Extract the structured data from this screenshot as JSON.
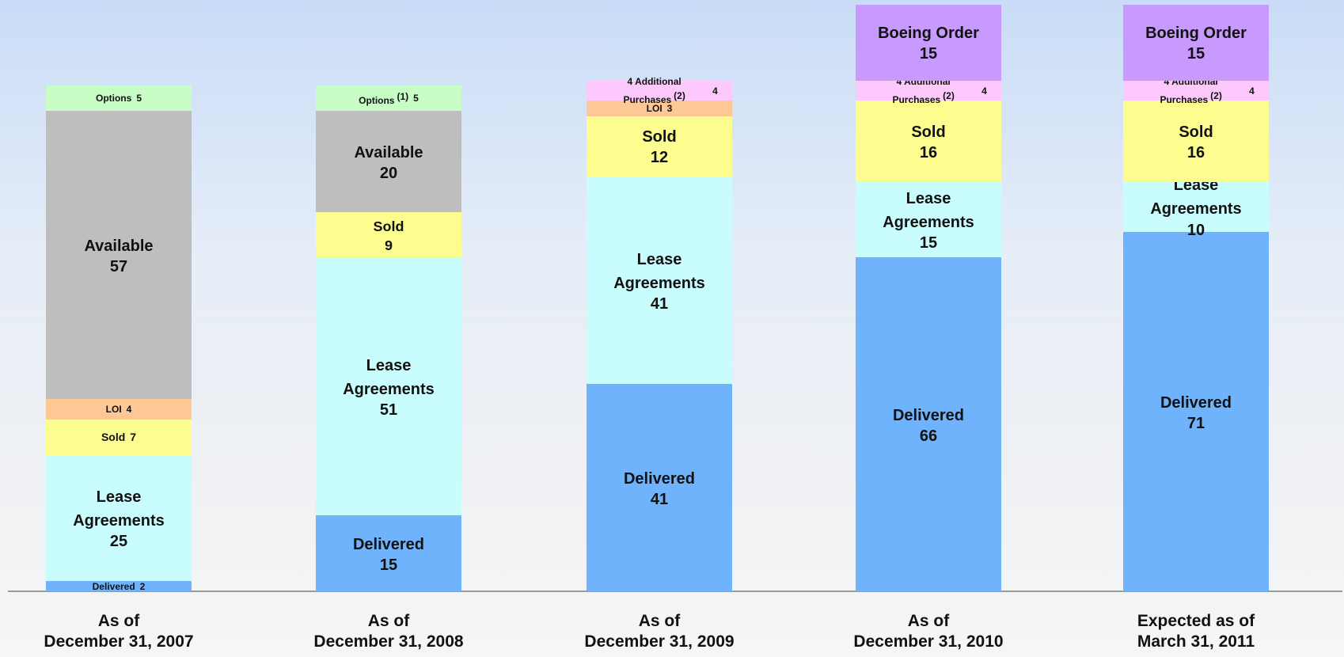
{
  "chart_data": {
    "type": "bar",
    "stacked": true,
    "categories": [
      "As of\nDecember 31, 2007",
      "As of\nDecember 31, 2008",
      "As of\nDecember 31, 2009",
      "As of\nDecember 31, 2010",
      "Expected as of\nMarch 31, 2011"
    ],
    "series": [
      {
        "name": "Delivered",
        "color": "#6fb3fd",
        "values": [
          2,
          15,
          41,
          66,
          71
        ]
      },
      {
        "name": "Lease Agreements",
        "color": "#c9fdfd",
        "values": [
          25,
          51,
          41,
          15,
          10
        ]
      },
      {
        "name": "Sold",
        "color": "#fdfd8f",
        "values": [
          7,
          9,
          12,
          16,
          16
        ]
      },
      {
        "name": "LOI",
        "color": "#fdc896",
        "values": [
          4,
          null,
          3,
          null,
          null
        ]
      },
      {
        "name": "Available",
        "color": "#bebebe",
        "values": [
          57,
          20,
          null,
          null,
          null
        ]
      },
      {
        "name": "Options",
        "color": "#c9fdc6",
        "values": [
          5,
          5,
          null,
          null,
          null
        ],
        "notes": [
          null,
          "(1)",
          null,
          null,
          null
        ]
      },
      {
        "name": "4 Additional Purchases",
        "color": "#fdc9fd",
        "values": [
          null,
          null,
          4,
          4,
          4
        ],
        "notes": [
          null,
          null,
          "(2)",
          "(2)",
          "(2)"
        ]
      },
      {
        "name": "Boeing Order",
        "color": "#c89afd",
        "values": [
          null,
          null,
          null,
          15,
          15
        ]
      }
    ]
  }
}
